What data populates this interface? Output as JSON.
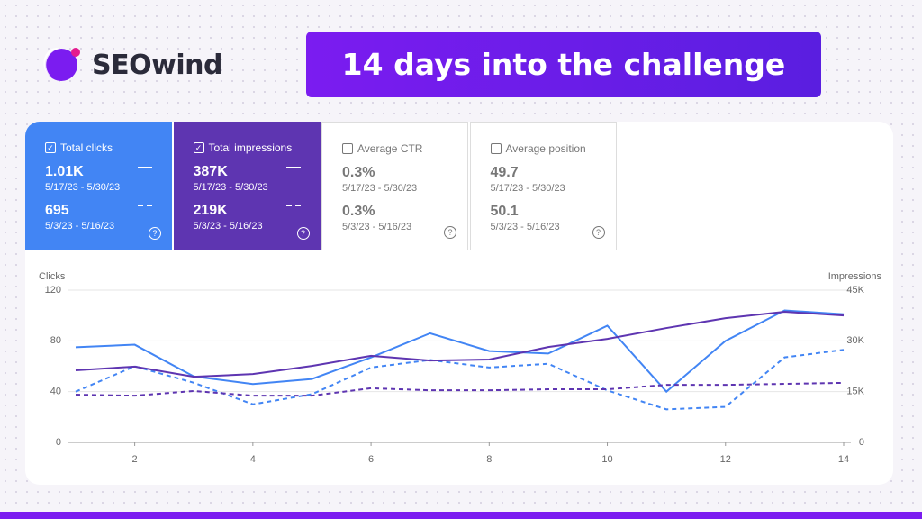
{
  "logo": {
    "text": "SEOwind"
  },
  "banner": {
    "title": "14 days into the challenge"
  },
  "cards": [
    {
      "label": "Total clicks",
      "checked": true,
      "current": "1.01K",
      "current_range": "5/17/23 - 5/30/23",
      "previous": "695",
      "previous_range": "5/3/23 - 5/16/23",
      "background": "#4285f4"
    },
    {
      "label": "Total impressions",
      "checked": true,
      "current": "387K",
      "current_range": "5/17/23 - 5/30/23",
      "previous": "219K",
      "previous_range": "5/3/23 - 5/16/23",
      "background": "#5e35b1"
    },
    {
      "label": "Average CTR",
      "checked": false,
      "current": "0.3%",
      "current_range": "5/17/23 - 5/30/23",
      "previous": "0.3%",
      "previous_range": "5/3/23 - 5/16/23",
      "background": "#ffffff"
    },
    {
      "label": "Average position",
      "checked": false,
      "current": "49.7",
      "current_range": "5/17/23 - 5/30/23",
      "previous": "50.1",
      "previous_range": "5/3/23 - 5/16/23",
      "background": "#ffffff"
    }
  ],
  "chart_data": {
    "type": "line",
    "y_label": "Clicks",
    "y2_label": "Impressions",
    "x": [
      1,
      2,
      3,
      4,
      5,
      6,
      7,
      8,
      9,
      10,
      11,
      12,
      13,
      14
    ],
    "xlim": [
      1,
      14
    ],
    "xticks": [
      2,
      4,
      6,
      8,
      10,
      12,
      14
    ],
    "ylim": [
      0,
      120
    ],
    "yticks": [
      0,
      40,
      80,
      120
    ],
    "y2lim": [
      0,
      45000
    ],
    "y2ticks": [
      0,
      {
        "value": 15000,
        "label": "15K"
      },
      {
        "value": 30000,
        "label": "30K"
      },
      {
        "value": 45000,
        "label": "45K"
      }
    ],
    "grid": true,
    "series": [
      {
        "color": "#4285f4",
        "dashed": false,
        "values": [
          75,
          77,
          52,
          46,
          50,
          67,
          86,
          72,
          70,
          92,
          40,
          80,
          104,
          101
        ]
      },
      {
        "color": "#4285f4",
        "dashed": true,
        "values": [
          40,
          60,
          47,
          30,
          38,
          59,
          65,
          59,
          62,
          41,
          26,
          28,
          67,
          73
        ]
      },
      {
        "color": "#5e35b1",
        "dashed": false,
        "axis": "y2",
        "values": [
          21300,
          22400,
          19400,
          20200,
          22600,
          25600,
          24200,
          24500,
          28200,
          30600,
          33800,
          36700,
          38600,
          37500
        ]
      },
      {
        "color": "#5e35b1",
        "dashed": true,
        "axis": "y2",
        "values": [
          14100,
          13800,
          15200,
          13800,
          13800,
          16000,
          15400,
          15400,
          15700,
          15700,
          17000,
          17000,
          17300,
          17600
        ]
      }
    ]
  }
}
